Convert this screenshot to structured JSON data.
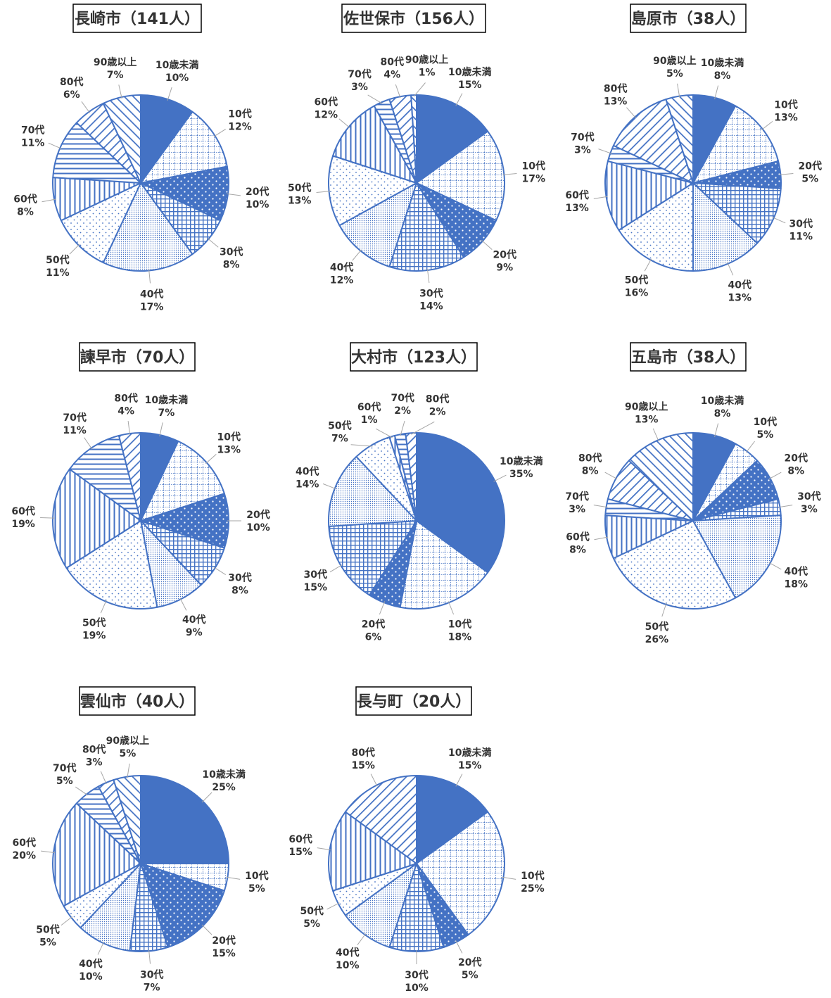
{
  "chart_data": [
    {
      "type": "pie",
      "title": "長崎市（141人）",
      "categories": [
        "10歳未満",
        "10代",
        "20代",
        "30代",
        "40代",
        "50代",
        "60代",
        "70代",
        "80代",
        "90歳以上"
      ],
      "values": [
        10,
        12,
        10,
        8,
        17,
        11,
        8,
        11,
        6,
        7
      ]
    },
    {
      "type": "pie",
      "title": "佐世保市（156人）",
      "categories": [
        "10歳未満",
        "10代",
        "20代",
        "30代",
        "40代",
        "50代",
        "60代",
        "70代",
        "80代",
        "90歳以上"
      ],
      "values": [
        15,
        17,
        9,
        14,
        12,
        13,
        12,
        3,
        4,
        1
      ]
    },
    {
      "type": "pie",
      "title": "島原市（38人）",
      "categories": [
        "10歳未満",
        "10代",
        "20代",
        "30代",
        "40代",
        "50代",
        "60代",
        "70代",
        "80代",
        "90歳以上"
      ],
      "values": [
        8,
        13,
        5,
        11,
        13,
        16,
        13,
        3,
        13,
        5
      ]
    },
    {
      "type": "pie",
      "title": "諫早市（70人）",
      "categories": [
        "10歳未満",
        "10代",
        "20代",
        "30代",
        "40代",
        "50代",
        "60代",
        "70代",
        "80代"
      ],
      "values": [
        7,
        13,
        10,
        8,
        9,
        19,
        19,
        11,
        4
      ]
    },
    {
      "type": "pie",
      "title": "大村市（123人）",
      "categories": [
        "10歳未満",
        "10代",
        "20代",
        "30代",
        "40代",
        "50代",
        "60代",
        "70代",
        "80代"
      ],
      "values": [
        35,
        18,
        6,
        15,
        14,
        7,
        1,
        2,
        2
      ]
    },
    {
      "type": "pie",
      "title": "五島市（38人）",
      "categories": [
        "10歳未満",
        "10代",
        "20代",
        "30代",
        "40代",
        "50代",
        "60代",
        "70代",
        "80代",
        "90歳以上"
      ],
      "values": [
        8,
        5,
        8,
        3,
        18,
        26,
        8,
        3,
        8,
        13
      ]
    },
    {
      "type": "pie",
      "title": "雲仙市（40人）",
      "categories": [
        "10歳未満",
        "10代",
        "20代",
        "30代",
        "40代",
        "50代",
        "60代",
        "70代",
        "80代",
        "90歳以上"
      ],
      "values": [
        25,
        5,
        15,
        7,
        10,
        5,
        20,
        5,
        3,
        5
      ]
    },
    {
      "type": "pie",
      "title": "長与町（20人）",
      "categories": [
        "10歳未満",
        "10代",
        "20代",
        "30代",
        "40代",
        "50代",
        "60代",
        "80代"
      ],
      "values": [
        15,
        25,
        5,
        10,
        10,
        5,
        15,
        15
      ]
    }
  ],
  "colors": {
    "accent": "#4472c4",
    "label": "#333333",
    "leader": "#a6a6a6",
    "background": "#ffffff"
  },
  "percent_suffix": "%"
}
